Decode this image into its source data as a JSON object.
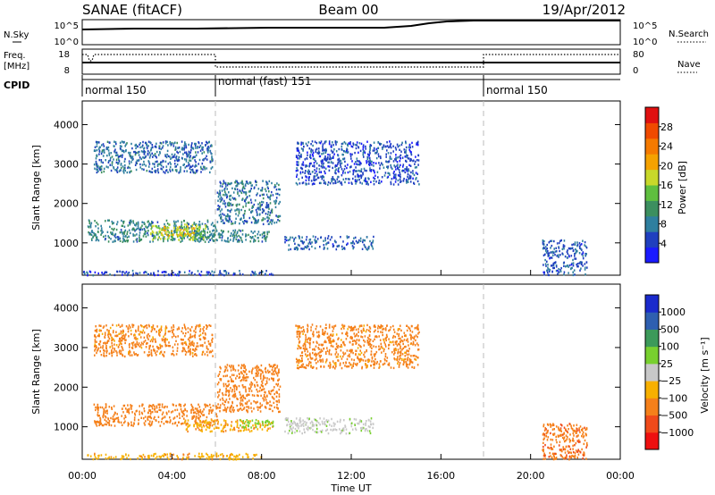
{
  "header": {
    "station": "SANAE (fitACF)",
    "beam": "Beam 00",
    "date": "19/Apr/2012"
  },
  "sky_panel": {
    "left_label": "N.Sky",
    "left_ticks": [
      "10^5",
      "10^0"
    ],
    "right_ticks": [
      "10^5",
      "10^0"
    ],
    "right_label": "N.Search"
  },
  "freq_panel": {
    "left_label_top": "Freq.",
    "left_label_bottom": "[MHz]",
    "left_ticks": [
      "18",
      "8"
    ],
    "right_ticks": [
      "80",
      "0"
    ],
    "right_label": "Nave"
  },
  "cpid": {
    "label": "CPID",
    "segments": [
      {
        "name": "normal 150",
        "start_h": 0
      },
      {
        "name": "normal (fast) 151",
        "start_h": 6
      },
      {
        "name": "normal 150",
        "start_h": 18
      }
    ]
  },
  "colors": {
    "power": [
      "#1a1aff",
      "#1f3fbf",
      "#2f7f9f",
      "#3c8f5f",
      "#5fbf3f",
      "#c8d82a",
      "#f5a200",
      "#f57a00",
      "#f04a00",
      "#e01010"
    ],
    "velocity": [
      "#ee1010",
      "#f04a1a",
      "#f5801a",
      "#f7b000",
      "#c8c8c8",
      "#78d02f",
      "#3c9a5a",
      "#2e5fb0",
      "#1a2acc"
    ]
  },
  "chart_data": [
    {
      "type": "heatmap",
      "title": "",
      "xlabel": "",
      "ylabel": "Slant Range [km]",
      "xlim_hours": [
        0,
        24
      ],
      "ylim_km": [
        180,
        4600
      ],
      "yticks": [
        1000,
        2000,
        3000,
        4000
      ],
      "grid": false,
      "colorbar": {
        "label": "Power [dB]",
        "range": [
          0,
          32
        ],
        "ticks": [
          "4",
          "8",
          "12",
          "16",
          "20",
          "24",
          "28"
        ]
      },
      "regions": [
        {
          "h0": 0.2,
          "h1": 6.0,
          "k0": 1050,
          "k1": 1600,
          "v": 9
        },
        {
          "h0": 3.0,
          "h1": 5.5,
          "k0": 1100,
          "k1": 1500,
          "v": 16
        },
        {
          "h0": 3.5,
          "h1": 5.0,
          "k0": 1200,
          "k1": 1450,
          "v": 19
        },
        {
          "h0": 5.0,
          "h1": 8.3,
          "k0": 1050,
          "k1": 1350,
          "v": 9
        },
        {
          "h0": 6.0,
          "h1": 8.8,
          "k0": 1500,
          "k1": 2600,
          "v": 8
        },
        {
          "h0": 0.0,
          "h1": 8.5,
          "k0": 200,
          "k1": 320,
          "v": 5
        },
        {
          "h0": 9.0,
          "h1": 13.0,
          "k0": 850,
          "k1": 1200,
          "v": 6
        },
        {
          "h0": 20.5,
          "h1": 22.5,
          "k0": 200,
          "k1": 1100,
          "v": 6
        },
        {
          "h0": 0.5,
          "h1": 5.8,
          "k0": 2800,
          "k1": 3600,
          "v": 7
        },
        {
          "h0": 9.5,
          "h1": 15.0,
          "k0": 2500,
          "k1": 3600,
          "v": 5
        }
      ]
    },
    {
      "type": "heatmap",
      "title": "",
      "xlabel": "Time UT",
      "ylabel": "Slant Range [km]",
      "xlim_hours": [
        0,
        24
      ],
      "xticks": [
        "00:00",
        "04:00",
        "08:00",
        "12:00",
        "16:00",
        "20:00",
        "00:00"
      ],
      "ylim_km": [
        180,
        4600
      ],
      "yticks": [
        1000,
        2000,
        3000,
        4000
      ],
      "grid": false,
      "colorbar": {
        "label": "Velocity [m s⁻¹]",
        "ticks": [
          "1000",
          "500",
          "100",
          "25",
          "−25",
          "−100",
          "−500",
          "−1000"
        ]
      },
      "regions": [
        {
          "h0": 0.5,
          "h1": 6.0,
          "k0": 1050,
          "k1": 1600,
          "v": -200
        },
        {
          "h0": 4.5,
          "h1": 8.5,
          "k0": 900,
          "k1": 1200,
          "v": -80
        },
        {
          "h0": 6.0,
          "h1": 8.8,
          "k0": 1400,
          "k1": 2600,
          "v": -250
        },
        {
          "h0": 7.0,
          "h1": 8.5,
          "k0": 1000,
          "k1": 1200,
          "v": 60
        },
        {
          "h0": 9.0,
          "h1": 13.0,
          "k0": 850,
          "k1": 1250,
          "v": 5
        },
        {
          "h0": 0.2,
          "h1": 8.0,
          "k0": 200,
          "k1": 350,
          "v": -80
        },
        {
          "h0": 20.5,
          "h1": 22.5,
          "k0": 200,
          "k1": 1100,
          "v": -400
        },
        {
          "h0": 0.5,
          "h1": 5.8,
          "k0": 2800,
          "k1": 3600,
          "v": -150
        },
        {
          "h0": 9.5,
          "h1": 15.0,
          "k0": 2500,
          "k1": 3600,
          "v": -150
        }
      ]
    }
  ]
}
